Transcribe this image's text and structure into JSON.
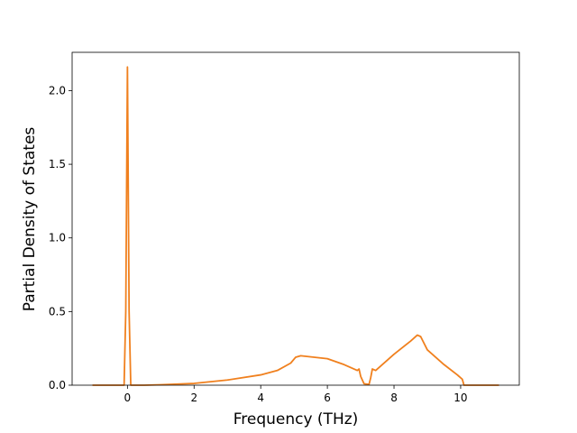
{
  "chart_data": {
    "type": "line",
    "xlabel": "Frequency (THz)",
    "ylabel": "Partial Density of States",
    "x": [
      -1.05,
      -0.1,
      -0.05,
      0,
      0.05,
      0.1,
      0.5,
      1,
      2,
      3,
      4,
      4.5,
      4.9,
      5.05,
      5.2,
      6,
      6.5,
      6.9,
      6.95,
      7.0,
      7.1,
      7.25,
      7.3,
      7.35,
      7.45,
      8,
      8.5,
      8.7,
      8.8,
      9,
      9.5,
      9.9,
      10.05,
      10.1,
      11.15
    ],
    "series": [
      {
        "color": "#f0801e",
        "values": [
          0,
          0,
          0.5,
          2.16,
          0.5,
          0,
          0,
          0.003,
          0.012,
          0.035,
          0.07,
          0.1,
          0.15,
          0.19,
          0.2,
          0.18,
          0.14,
          0.1,
          0.11,
          0.06,
          0.01,
          0.005,
          0.05,
          0.11,
          0.1,
          0.21,
          0.3,
          0.34,
          0.33,
          0.24,
          0.14,
          0.07,
          0.04,
          0,
          0
        ]
      }
    ],
    "xlim": [
      -1.66,
      11.76
    ],
    "xticks": [
      0,
      2,
      4,
      6,
      8,
      10
    ],
    "ylim": [
      0,
      2.26
    ],
    "yticks": [
      {
        "value": 0,
        "label": "0.0"
      },
      {
        "value": 0.5,
        "label": "0.5"
      },
      {
        "value": 1,
        "label": "1.0"
      },
      {
        "value": 1.5,
        "label": "1.5"
      },
      {
        "value": 2,
        "label": "2.0"
      }
    ],
    "grid": false
  }
}
